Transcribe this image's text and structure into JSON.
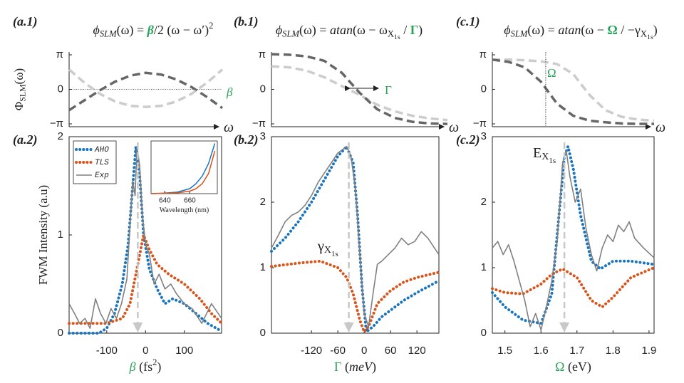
{
  "chart_data": [
    {
      "type": "line",
      "panel": "(a.1)",
      "title": [
        {
          "text": "ϕ",
          "style": "italic"
        },
        {
          "text": "SLM",
          "sub": 1,
          "style": "italic"
        },
        {
          "text": "(ω) = "
        },
        {
          "text": "β",
          "color": "#2aa35a",
          "weight": "bold",
          "style": "italic"
        },
        {
          "text": "/2 (ω − ω′)"
        },
        {
          "text": "2",
          "sub": -1
        }
      ],
      "ylabel": [
        {
          "text": "Φ"
        },
        {
          "text": "SLM",
          "sub": 1
        },
        {
          "text": "(ω)"
        }
      ],
      "xlabel": [
        {
          "text": "ω",
          "style": "italic"
        }
      ],
      "xlim": [
        0,
        1
      ],
      "ylim": [
        -3.4,
        3.4
      ],
      "yticks": [
        {
          "value": 3.1416,
          "label": "π"
        },
        0,
        {
          "value": -3.1416,
          "label": "−π"
        }
      ],
      "zero_line": true,
      "annotations": [
        [
          {
            "text": "β",
            "color": "#2aa35a",
            "style": "italic"
          }
        ]
      ],
      "series": [
        {
          "color": "#666666",
          "dash": "dashed",
          "x": [
            0,
            0.1,
            0.2,
            0.3,
            0.4,
            0.5,
            0.6,
            0.7,
            0.8,
            0.9,
            1
          ],
          "values": [
            -1.9,
            -1.0,
            -0.1,
            0.7,
            1.25,
            1.5,
            1.35,
            0.9,
            0.2,
            -0.7,
            -1.7
          ]
        },
        {
          "color": "#cccccc",
          "dash": "dashed",
          "x": [
            0,
            0.1,
            0.2,
            0.3,
            0.4,
            0.5,
            0.6,
            0.7,
            0.8,
            0.9,
            1
          ],
          "values": [
            1.8,
            0.6,
            -0.4,
            -1.1,
            -1.5,
            -1.6,
            -1.5,
            -1.1,
            -0.4,
            0.6,
            1.8
          ]
        }
      ]
    },
    {
      "type": "line",
      "panel": "(b.1)",
      "title": [
        {
          "text": "ϕ",
          "style": "italic"
        },
        {
          "text": "SLM",
          "sub": 1,
          "style": "italic"
        },
        {
          "text": "(ω) = "
        },
        {
          "text": "atan",
          "style": "italic"
        },
        {
          "text": "(ω − ω"
        },
        {
          "text": "X",
          "sub": 1
        },
        {
          "text": "1s",
          "sub": 2
        },
        {
          "text": " / "
        },
        {
          "text": "Γ",
          "color": "#2aa35a",
          "weight": "bold"
        },
        {
          "text": ")"
        }
      ],
      "xlabel": [
        {
          "text": "ω",
          "style": "italic"
        }
      ],
      "xlim": [
        0,
        1
      ],
      "ylim": [
        -3.4,
        3.4
      ],
      "yticks": [
        {
          "value": 3.1416,
          "label": "π"
        },
        0,
        {
          "value": -3.1416,
          "label": "−π"
        }
      ],
      "annotations": [
        [
          {
            "text": "Γ",
            "color": "#2aa35a"
          }
        ]
      ],
      "series": [
        {
          "color": "#cccccc",
          "dash": "dashed",
          "x": [
            0,
            0.1,
            0.2,
            0.3,
            0.4,
            0.5,
            0.6,
            0.7,
            0.8,
            0.9,
            1
          ],
          "values": [
            2.1,
            2.0,
            1.7,
            1.1,
            0.3,
            -0.5,
            -1.4,
            -2.0,
            -2.4,
            -2.65,
            -2.8
          ]
        },
        {
          "color": "#666666",
          "dash": "dashed",
          "x": [
            0,
            0.1,
            0.2,
            0.3,
            0.4,
            0.5,
            0.6,
            0.7,
            0.8,
            0.9,
            1
          ],
          "values": [
            3.2,
            3.15,
            3.0,
            2.6,
            1.5,
            -0.3,
            -1.8,
            -2.6,
            -2.95,
            -3.1,
            -3.15
          ]
        }
      ]
    },
    {
      "type": "line",
      "panel": "(c.1)",
      "title": [
        {
          "text": "ϕ",
          "style": "italic"
        },
        {
          "text": "SLM",
          "sub": 1,
          "style": "italic"
        },
        {
          "text": "(ω) = "
        },
        {
          "text": "atan",
          "style": "italic"
        },
        {
          "text": "(ω − "
        },
        {
          "text": "Ω",
          "color": "#2aa35a",
          "weight": "bold"
        },
        {
          "text": " / −γ"
        },
        {
          "text": "X",
          "sub": 1
        },
        {
          "text": "1s",
          "sub": 2
        },
        {
          "text": ")"
        }
      ],
      "xlabel": [
        {
          "text": "ω",
          "style": "italic"
        }
      ],
      "xlim": [
        0,
        1
      ],
      "ylim": [
        -3.4,
        3.4
      ],
      "yticks": [
        {
          "value": 3.1416,
          "label": "π"
        },
        0,
        {
          "value": -3.1416,
          "label": "−π"
        }
      ],
      "reference_x": 0.33,
      "annotations": [
        [
          {
            "text": "Ω",
            "color": "#2aa35a"
          }
        ]
      ],
      "series": [
        {
          "color": "#cccccc",
          "dash": "dashed",
          "x": [
            0,
            0.1,
            0.2,
            0.3,
            0.4,
            0.5,
            0.6,
            0.7,
            0.8,
            0.9,
            1
          ],
          "values": [
            2.7,
            2.7,
            2.65,
            2.55,
            2.3,
            1.4,
            -0.5,
            -1.9,
            -2.5,
            -2.75,
            -2.85
          ]
        },
        {
          "color": "#666666",
          "dash": "dashed",
          "x": [
            0,
            0.1,
            0.2,
            0.3,
            0.4,
            0.5,
            0.6,
            0.7,
            0.8,
            0.9,
            1
          ],
          "values": [
            2.7,
            2.5,
            2.0,
            0.7,
            -1.3,
            -2.4,
            -2.85,
            -3.0,
            -3.1,
            -3.14,
            -3.14
          ]
        }
      ]
    },
    {
      "type": "line",
      "panel": "(a.2)",
      "ylabel": [
        {
          "text": "FWM Intensity (a.u)"
        }
      ],
      "xlabel": [
        {
          "text": "β",
          "color": "#2aa35a",
          "style": "italic"
        },
        {
          "text": " (fs"
        },
        {
          "text": "2",
          "sub": -1
        },
        {
          "text": ")"
        }
      ],
      "xlim": [
        -197,
        196
      ],
      "ylim": [
        0,
        2
      ],
      "xticks": [
        -100,
        0,
        100
      ],
      "yticks": [
        0,
        1,
        2
      ],
      "reference_x": -20,
      "legend": "upper left",
      "series": [
        {
          "name": "AHO",
          "color": "#1a75c0",
          "dash": "dotted",
          "x": [
            -197,
            -120,
            -100,
            -80,
            -60,
            -45,
            -35,
            -25,
            -15,
            -5,
            10,
            30,
            50,
            70,
            100,
            130,
            160,
            196
          ],
          "values": [
            0,
            0,
            0.05,
            0.2,
            0.5,
            0.9,
            1.4,
            1.9,
            1.6,
            1.0,
            0.65,
            0.45,
            0.3,
            0.35,
            0.3,
            0.2,
            0.1,
            0.02
          ]
        },
        {
          "name": "TLS",
          "color": "#d9541a",
          "dash": "dotted",
          "x": [
            -197,
            -100,
            -60,
            -40,
            -20,
            -5,
            10,
            30,
            60,
            100,
            140,
            170,
            196
          ],
          "values": [
            0.1,
            0.1,
            0.15,
            0.3,
            0.7,
            1.0,
            0.85,
            0.7,
            0.6,
            0.5,
            0.35,
            0.2,
            0.1
          ]
        },
        {
          "name": "Exp",
          "color": "#808080",
          "dash": "solid",
          "x": [
            -197,
            -183,
            -170,
            -156,
            -143,
            -129,
            -116,
            -102,
            -89,
            -75,
            -62,
            -48,
            -40,
            -33,
            -27,
            -22,
            -15,
            -8,
            0,
            10,
            22,
            35,
            50,
            65,
            80,
            100,
            120,
            145,
            170,
            196
          ],
          "values": [
            0.3,
            0.2,
            0.1,
            0.15,
            0.05,
            0.35,
            0.2,
            0.1,
            0.25,
            0.15,
            0.3,
            0.55,
            1.1,
            1.55,
            1.4,
            1.9,
            1.7,
            1.2,
            0.9,
            0.8,
            0.5,
            0.6,
            0.45,
            0.5,
            0.4,
            0.3,
            0.25,
            0.1,
            0.3,
            0.15
          ]
        }
      ]
    },
    {
      "type": "line",
      "panel": "(b.2)",
      "xlabel": [
        {
          "text": "Γ",
          "color": "#2aa35a"
        },
        {
          "text": " ("
        },
        {
          "text": "meV",
          "style": "italic"
        },
        {
          "text": ")"
        }
      ],
      "xlim": [
        -211,
        170
      ],
      "ylim": [
        0,
        3
      ],
      "xticks": [
        -120,
        -60,
        0,
        60,
        120
      ],
      "yticks": [
        0,
        1,
        2,
        3
      ],
      "reference_x": -35,
      "annotations": [
        [
          {
            "text": "γ"
          },
          {
            "text": "X",
            "sub": 1
          },
          {
            "text": "1s",
            "sub": 2
          }
        ]
      ],
      "series": [
        {
          "color": "#1a75c0",
          "dash": "dotted",
          "x": [
            -211,
            -180,
            -150,
            -120,
            -90,
            -60,
            -40,
            -25,
            -15,
            -5,
            5,
            20,
            40,
            60,
            90,
            120,
            170
          ],
          "values": [
            1.25,
            1.45,
            1.7,
            2.0,
            2.35,
            2.7,
            2.85,
            2.6,
            1.8,
            0.7,
            0.02,
            0.1,
            0.25,
            0.35,
            0.5,
            0.62,
            0.8
          ]
        },
        {
          "color": "#d9541a",
          "dash": "dotted",
          "x": [
            -211,
            -150,
            -100,
            -60,
            -40,
            -25,
            -10,
            0,
            10,
            30,
            60,
            90,
            120,
            170
          ],
          "values": [
            1.02,
            1.07,
            1.1,
            1.0,
            0.85,
            0.6,
            0.2,
            0.02,
            0.1,
            0.45,
            0.65,
            0.78,
            0.85,
            0.93
          ]
        },
        {
          "color": "#808080",
          "dash": "solid",
          "x": [
            -211,
            -195,
            -180,
            -165,
            -150,
            -135,
            -120,
            -105,
            -90,
            -75,
            -60,
            -50,
            -40,
            -30,
            -20,
            -10,
            0,
            10,
            20,
            30,
            40,
            55,
            70,
            85,
            100,
            115,
            130,
            145,
            160,
            170
          ],
          "values": [
            1.3,
            1.5,
            1.7,
            1.8,
            1.85,
            1.95,
            2.1,
            2.3,
            2.45,
            2.6,
            2.75,
            2.8,
            2.85,
            2.7,
            2.2,
            1.2,
            0.3,
            0.1,
            0.6,
            1.05,
            1.1,
            1.2,
            1.3,
            1.45,
            1.35,
            1.4,
            1.55,
            1.45,
            1.3,
            1.2
          ]
        }
      ]
    },
    {
      "type": "line",
      "panel": "(c.2)",
      "xlabel": [
        {
          "text": "Ω",
          "color": "#2aa35a"
        },
        {
          "text": " (eV)"
        }
      ],
      "xlim": [
        1.465,
        1.914
      ],
      "ylim": [
        0,
        3
      ],
      "xticks": [
        1.5,
        1.6,
        1.7,
        1.8,
        1.9
      ],
      "yticks": [
        0,
        1,
        2,
        3
      ],
      "reference_x": 1.665,
      "annotations": [
        [
          {
            "text": "E"
          },
          {
            "text": "X",
            "sub": 1
          },
          {
            "text": "1s",
            "sub": 2
          }
        ]
      ],
      "series": [
        {
          "color": "#1a75c0",
          "dash": "dotted",
          "x": [
            1.465,
            1.5,
            1.55,
            1.6,
            1.63,
            1.65,
            1.665,
            1.675,
            1.69,
            1.71,
            1.74,
            1.765,
            1.8,
            1.85,
            1.914
          ],
          "values": [
            0.62,
            0.4,
            0.2,
            0.15,
            0.6,
            1.8,
            2.7,
            2.85,
            2.5,
            1.8,
            1.1,
            0.98,
            1.1,
            1.1,
            1.05
          ]
        },
        {
          "color": "#d9541a",
          "dash": "dotted",
          "x": [
            1.465,
            1.5,
            1.55,
            1.6,
            1.63,
            1.66,
            1.7,
            1.74,
            1.77,
            1.8,
            1.85,
            1.914
          ],
          "values": [
            0.68,
            0.62,
            0.6,
            0.75,
            0.9,
            0.98,
            0.85,
            0.5,
            0.4,
            0.55,
            0.85,
            1.0
          ]
        },
        {
          "color": "#808080",
          "dash": "solid",
          "x": [
            1.465,
            1.48,
            1.495,
            1.51,
            1.525,
            1.54,
            1.555,
            1.57,
            1.585,
            1.6,
            1.615,
            1.63,
            1.645,
            1.66,
            1.67,
            1.68,
            1.695,
            1.71,
            1.725,
            1.74,
            1.755,
            1.77,
            1.785,
            1.8,
            1.815,
            1.83,
            1.845,
            1.86,
            1.885,
            1.914
          ],
          "values": [
            1.3,
            1.4,
            1.2,
            1.35,
            1.1,
            0.8,
            0.5,
            0.1,
            0.3,
            0.05,
            0.4,
            0.8,
            1.4,
            2.6,
            2.8,
            2.4,
            2.0,
            2.2,
            1.6,
            1.2,
            0.95,
            1.3,
            1.5,
            1.4,
            1.65,
            1.55,
            1.7,
            1.45,
            1.3,
            1.15
          ]
        }
      ]
    },
    {
      "type": "line",
      "xlabel": [
        {
          "text": "Wavelength (nm)"
        }
      ],
      "xlim": [
        629,
        682
      ],
      "ylim": [
        0,
        1.05
      ],
      "xticks": [
        640,
        660
      ],
      "series": [
        {
          "color": "#1a75c0",
          "dash": "solid",
          "x": [
            629,
            640,
            650,
            660,
            665,
            670,
            675,
            680
          ],
          "values": [
            0,
            0.01,
            0.03,
            0.1,
            0.2,
            0.35,
            0.6,
            1.0
          ]
        },
        {
          "color": "#d9541a",
          "dash": "solid",
          "x": [
            629,
            640,
            650,
            660,
            665,
            670,
            675,
            680
          ],
          "values": [
            0,
            0.005,
            0.015,
            0.05,
            0.1,
            0.2,
            0.4,
            0.85
          ]
        }
      ]
    }
  ]
}
